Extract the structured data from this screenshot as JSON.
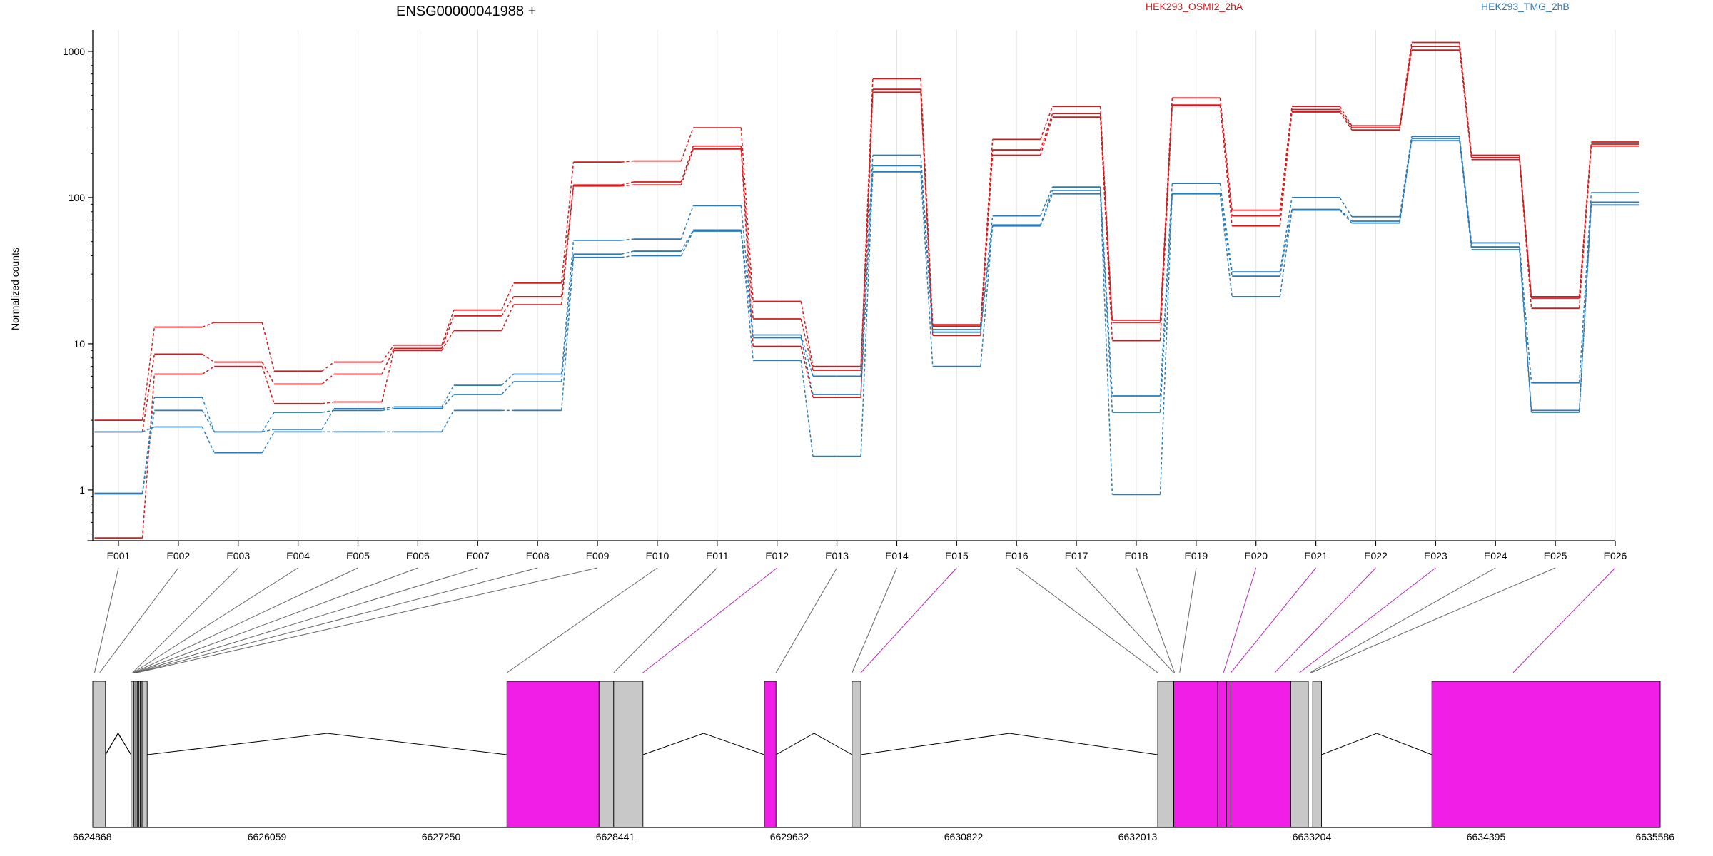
{
  "chart_data": {
    "type": "line",
    "title": "ENSG00000041988 +",
    "ylabel": "Normalized counts",
    "yscale": "log",
    "ylim": [
      0.45,
      1400
    ],
    "yticks": [
      1,
      10,
      100,
      1000
    ],
    "ytick_labels": [
      "1",
      "10",
      "100",
      "1000"
    ],
    "grid": "vertical",
    "categories": [
      "E001",
      "E002",
      "E003",
      "E004",
      "E005",
      "E006",
      "E007",
      "E008",
      "E009",
      "E010",
      "E011",
      "E012",
      "E013",
      "E014",
      "E015",
      "E016",
      "E017",
      "E018",
      "E019",
      "E020",
      "E021",
      "E022",
      "E023",
      "E024",
      "E025",
      "E026"
    ],
    "legend": [
      {
        "label": "HEK293_OSMI2_2hA",
        "color": "#d7191c"
      },
      {
        "label": "HEK293_TMG_2hB",
        "color": "#2c7bb6"
      }
    ],
    "series": [
      {
        "group": 0,
        "values": [
          3.0,
          13,
          14,
          6.5,
          7.5,
          9.8,
          17,
          26,
          175,
          178,
          300,
          19.5,
          7.0,
          650,
          13.5,
          250,
          420,
          14.5,
          480,
          82,
          420,
          310,
          1150,
          195,
          21,
          240
        ]
      },
      {
        "group": 0,
        "values": [
          2.5,
          8.5,
          7.5,
          5.3,
          6.2,
          9.3,
          15.5,
          21,
          122,
          128,
          225,
          14.8,
          6.6,
          550,
          13.2,
          212,
          375,
          14.0,
          430,
          75,
          400,
          300,
          1080,
          188,
          20.5,
          232
        ]
      },
      {
        "group": 0,
        "values": [
          0.47,
          6.2,
          7.0,
          3.9,
          4.0,
          9.0,
          12.3,
          18.5,
          120,
          122,
          215,
          9.6,
          4.3,
          525,
          11.4,
          195,
          355,
          10.5,
          425,
          64,
          385,
          290,
          1020,
          182,
          17.5,
          225
        ]
      },
      {
        "group": 1,
        "values": [
          0.95,
          4.3,
          2.5,
          2.6,
          3.6,
          3.7,
          5.2,
          6.2,
          51,
          52,
          88,
          11.5,
          6.0,
          195,
          12.5,
          75,
          118,
          4.4,
          125,
          31,
          100,
          74,
          262,
          49,
          5.4,
          108
        ]
      },
      {
        "group": 1,
        "values": [
          0.94,
          3.5,
          2.5,
          3.4,
          3.5,
          3.6,
          4.5,
          5.5,
          41,
          43,
          60,
          11.0,
          4.5,
          165,
          12.0,
          65,
          112,
          3.4,
          107,
          29,
          83,
          69,
          254,
          46,
          3.5,
          93
        ]
      },
      {
        "group": 1,
        "values": [
          2.5,
          2.7,
          1.8,
          2.5,
          2.5,
          2.5,
          3.5,
          3.5,
          39,
          40,
          59,
          7.7,
          1.7,
          150,
          7.0,
          64,
          106,
          0.93,
          106,
          21,
          82,
          67,
          245,
          44,
          3.4,
          89
        ]
      }
    ],
    "gene_model": {
      "coordinate_ticks": [
        "6624868",
        "6626059",
        "6627250",
        "6628441",
        "6629632",
        "6630822",
        "6632013",
        "6633204",
        "6634395",
        "6635586"
      ],
      "highlight_color": "#f01ee6",
      "neutral_color": "#c8c8c8",
      "highlighted_exons": [
        "E009",
        "E012",
        "E015",
        "E019",
        "E020",
        "E021",
        "E022",
        "E023",
        "E026"
      ]
    }
  }
}
